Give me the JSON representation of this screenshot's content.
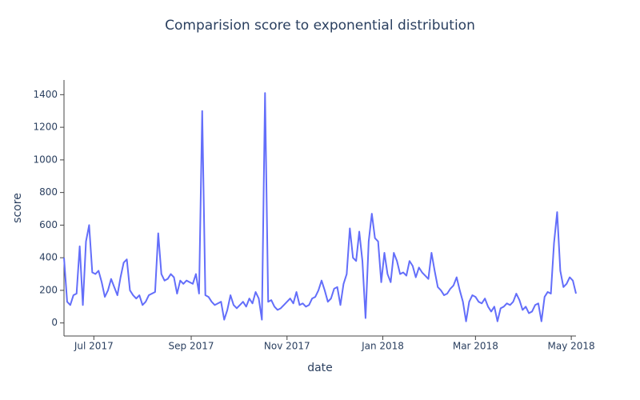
{
  "chart_data": {
    "type": "line",
    "title": "Comparision score to exponential distribution",
    "x_label": "date",
    "y_label": "score",
    "color": "#636efa",
    "x": [
      "2017-06-12",
      "2017-06-14",
      "2017-06-16",
      "2017-06-18",
      "2017-06-20",
      "2017-06-22",
      "2017-06-24",
      "2017-06-26",
      "2017-06-28",
      "2017-06-30",
      "2017-07-02",
      "2017-07-04",
      "2017-07-06",
      "2017-07-08",
      "2017-07-10",
      "2017-07-12",
      "2017-07-14",
      "2017-07-16",
      "2017-07-18",
      "2017-07-20",
      "2017-07-22",
      "2017-07-24",
      "2017-07-26",
      "2017-07-28",
      "2017-07-30",
      "2017-08-01",
      "2017-08-03",
      "2017-08-05",
      "2017-08-07",
      "2017-08-09",
      "2017-08-11",
      "2017-08-13",
      "2017-08-15",
      "2017-08-17",
      "2017-08-19",
      "2017-08-21",
      "2017-08-23",
      "2017-08-25",
      "2017-08-27",
      "2017-08-29",
      "2017-08-31",
      "2017-09-02",
      "2017-09-04",
      "2017-09-06",
      "2017-09-08",
      "2017-09-10",
      "2017-09-12",
      "2017-09-14",
      "2017-09-16",
      "2017-09-18",
      "2017-09-20",
      "2017-09-22",
      "2017-09-24",
      "2017-09-26",
      "2017-09-28",
      "2017-09-30",
      "2017-10-02",
      "2017-10-04",
      "2017-10-06",
      "2017-10-08",
      "2017-10-10",
      "2017-10-12",
      "2017-10-14",
      "2017-10-16",
      "2017-10-18",
      "2017-10-20",
      "2017-10-22",
      "2017-10-24",
      "2017-10-26",
      "2017-10-28",
      "2017-10-30",
      "2017-11-01",
      "2017-11-03",
      "2017-11-05",
      "2017-11-07",
      "2017-11-09",
      "2017-11-11",
      "2017-11-13",
      "2017-11-15",
      "2017-11-17",
      "2017-11-19",
      "2017-11-21",
      "2017-11-23",
      "2017-11-25",
      "2017-11-27",
      "2017-11-29",
      "2017-12-01",
      "2017-12-03",
      "2017-12-05",
      "2017-12-07",
      "2017-12-09",
      "2017-12-11",
      "2017-12-13",
      "2017-12-15",
      "2017-12-17",
      "2017-12-19",
      "2017-12-21",
      "2017-12-23",
      "2017-12-25",
      "2017-12-27",
      "2017-12-29",
      "2017-12-31",
      "2018-01-02",
      "2018-01-04",
      "2018-01-06",
      "2018-01-08",
      "2018-01-10",
      "2018-01-12",
      "2018-01-14",
      "2018-01-16",
      "2018-01-18",
      "2018-01-20",
      "2018-01-22",
      "2018-01-24",
      "2018-01-26",
      "2018-01-28",
      "2018-01-30",
      "2018-02-01",
      "2018-02-03",
      "2018-02-05",
      "2018-02-07",
      "2018-02-09",
      "2018-02-11",
      "2018-02-13",
      "2018-02-15",
      "2018-02-17",
      "2018-02-19",
      "2018-02-21",
      "2018-02-23",
      "2018-02-25",
      "2018-02-27",
      "2018-03-01",
      "2018-03-03",
      "2018-03-05",
      "2018-03-07",
      "2018-03-09",
      "2018-03-11",
      "2018-03-13",
      "2018-03-15",
      "2018-03-17",
      "2018-03-19",
      "2018-03-21",
      "2018-03-23",
      "2018-03-25",
      "2018-03-27",
      "2018-03-29",
      "2018-03-31",
      "2018-04-02",
      "2018-04-04",
      "2018-04-06",
      "2018-04-08",
      "2018-04-10",
      "2018-04-12",
      "2018-04-14",
      "2018-04-16",
      "2018-04-18",
      "2018-04-20",
      "2018-04-22",
      "2018-04-24",
      "2018-04-26",
      "2018-04-28",
      "2018-04-30",
      "2018-05-02",
      "2018-05-04"
    ],
    "values": [
      400,
      130,
      110,
      170,
      180,
      470,
      110,
      500,
      600,
      310,
      300,
      320,
      250,
      160,
      200,
      270,
      220,
      170,
      280,
      370,
      390,
      200,
      170,
      150,
      170,
      110,
      130,
      170,
      180,
      190,
      550,
      300,
      260,
      270,
      300,
      280,
      180,
      260,
      240,
      260,
      250,
      240,
      300,
      180,
      1300,
      170,
      160,
      130,
      110,
      120,
      130,
      20,
      80,
      170,
      110,
      90,
      110,
      130,
      100,
      150,
      120,
      190,
      150,
      20,
      1410,
      130,
      140,
      100,
      80,
      90,
      110,
      130,
      150,
      120,
      190,
      110,
      120,
      100,
      110,
      150,
      160,
      200,
      260,
      200,
      130,
      150,
      210,
      220,
      110,
      240,
      300,
      580,
      400,
      380,
      560,
      380,
      30,
      500,
      670,
      520,
      500,
      250,
      430,
      300,
      250,
      430,
      380,
      300,
      310,
      290,
      380,
      350,
      280,
      340,
      310,
      290,
      270,
      430,
      320,
      220,
      200,
      170,
      180,
      210,
      230,
      280,
      200,
      130,
      10,
      130,
      170,
      160,
      130,
      120,
      150,
      100,
      70,
      100,
      10,
      90,
      100,
      120,
      110,
      130,
      180,
      140,
      80,
      100,
      60,
      70,
      110,
      120,
      10,
      160,
      190,
      180,
      490,
      680,
      320,
      220,
      240,
      280,
      260,
      180
    ],
    "xlim": [
      "2017-06-12",
      "2018-05-04"
    ],
    "xticks": [
      {
        "value": "2017-07-01",
        "label": "Jul 2017"
      },
      {
        "value": "2017-09-01",
        "label": "Sep 2017"
      },
      {
        "value": "2017-11-01",
        "label": "Nov 2017"
      },
      {
        "value": "2018-01-01",
        "label": "Jan 2018"
      },
      {
        "value": "2018-03-01",
        "label": "Mar 2018"
      },
      {
        "value": "2018-05-01",
        "label": "May 2018"
      }
    ],
    "ylim": [
      -80,
      1490
    ],
    "yticks": [
      0,
      200,
      400,
      600,
      800,
      1000,
      1200,
      1400
    ]
  }
}
